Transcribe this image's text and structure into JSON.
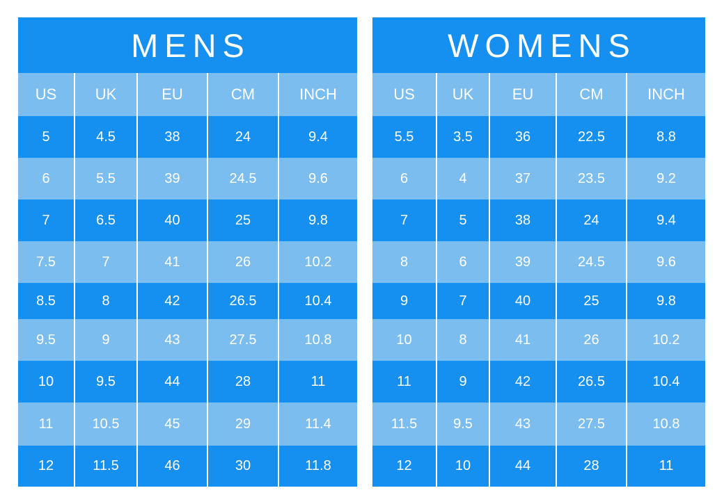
{
  "colors": {
    "dark": "#1690f0",
    "light": "#7cbdf0",
    "text": "#ffffff"
  },
  "mens": {
    "title": "MENS",
    "headers": [
      "US",
      "UK",
      "EU",
      "CM",
      "INCH"
    ],
    "rows": [
      [
        "5",
        "4.5",
        "38",
        "24",
        "9.4"
      ],
      [
        "6",
        "5.5",
        "39",
        "24.5",
        "9.6"
      ],
      [
        "7",
        "6.5",
        "40",
        "25",
        "9.8"
      ],
      [
        "7.5",
        "7",
        "41",
        "26",
        "10.2"
      ],
      [
        "8.5",
        "8",
        "42",
        "26.5",
        "10.4"
      ],
      [
        "9.5",
        "9",
        "43",
        "27.5",
        "10.8"
      ],
      [
        "10",
        "9.5",
        "44",
        "28",
        "11"
      ],
      [
        "11",
        "10.5",
        "45",
        "29",
        "11.4"
      ],
      [
        "12",
        "11.5",
        "46",
        "30",
        "11.8"
      ]
    ]
  },
  "womens": {
    "title": "WOMENS",
    "headers": [
      "US",
      "UK",
      "EU",
      "CM",
      "INCH"
    ],
    "rows": [
      [
        "5.5",
        "3.5",
        "36",
        "22.5",
        "8.8"
      ],
      [
        "6",
        "4",
        "37",
        "23.5",
        "9.2"
      ],
      [
        "7",
        "5",
        "38",
        "24",
        "9.4"
      ],
      [
        "8",
        "6",
        "39",
        "24.5",
        "9.6"
      ],
      [
        "9",
        "7",
        "40",
        "25",
        "9.8"
      ],
      [
        "10",
        "8",
        "41",
        "26",
        "10.2"
      ],
      [
        "11",
        "9",
        "42",
        "26.5",
        "10.4"
      ],
      [
        "11.5",
        "9.5",
        "43",
        "27.5",
        "10.8"
      ],
      [
        "12",
        "10",
        "44",
        "28",
        "11"
      ]
    ]
  }
}
